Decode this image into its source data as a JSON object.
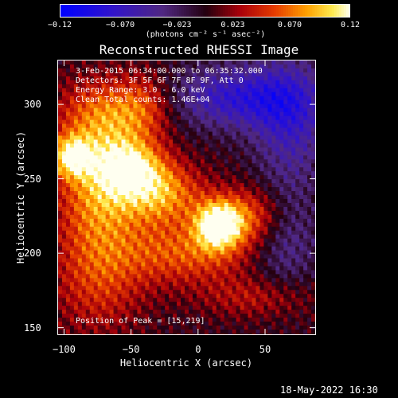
{
  "chart_data": {
    "type": "heatmap",
    "title": "Reconstructed RHESSI Image",
    "xlabel": "Heliocentric X (arcsec)",
    "ylabel": "Heliocentric Y (arcsec)",
    "xlim": [
      -105,
      88
    ],
    "ylim": [
      145,
      330
    ],
    "x_ticks": [
      -100,
      -50,
      0,
      50
    ],
    "x_tick_labels": [
      "−100",
      "−50",
      "0",
      "50"
    ],
    "y_ticks": [
      150,
      200,
      250,
      300
    ],
    "y_tick_labels": [
      "150",
      "200",
      "250",
      "300"
    ],
    "colorbar": {
      "range": [
        -0.12,
        0.12
      ],
      "tick_labels": [
        "−0.12",
        "−0.070",
        "−0.023",
        "0.023",
        "0.070",
        "0.12"
      ],
      "tick_values": [
        -0.12,
        -0.07,
        -0.023,
        0.023,
        0.07,
        0.12
      ],
      "unit": "(photons cm⁻² s⁻¹ asec⁻²)"
    },
    "annotations": [
      "3-Feb-2015 06:34:00.000 to 06:35:32.000",
      "Detectors: 3F 5F 6F 7F 8F 9F, Att 0",
      "Energy Range: 3.0 - 6.0 keV",
      "Clean    Total counts: 1.46E+04"
    ],
    "peak_label": "Position of Peak = [15,219]",
    "sources": [
      {
        "x": 15,
        "y": 219,
        "peak": 0.12,
        "sx": 12,
        "sy": 11
      },
      {
        "x": -95,
        "y": 265,
        "peak": 0.095,
        "sx": 11,
        "sy": 10
      },
      {
        "x": -52,
        "y": 258,
        "peak": 0.09,
        "sx": 18,
        "sy": 13
      },
      {
        "x": -75,
        "y": 238,
        "peak": 0.075,
        "sx": 22,
        "sy": 28
      },
      {
        "x": -28,
        "y": 240,
        "peak": 0.08,
        "sx": 22,
        "sy": 15
      },
      {
        "x": -70,
        "y": 292,
        "peak": 0.07,
        "sx": 25,
        "sy": 18
      },
      {
        "x": 40,
        "y": 225,
        "peak": 0.065,
        "sx": 20,
        "sy": 14
      },
      {
        "x": -10,
        "y": 200,
        "peak": 0.06,
        "sx": 35,
        "sy": 15
      },
      {
        "x": -75,
        "y": 180,
        "peak": 0.045,
        "sx": 25,
        "sy": 25
      },
      {
        "x": 45,
        "y": 170,
        "peak": 0.035,
        "sx": 30,
        "sy": 10
      },
      {
        "x": -40,
        "y": 300,
        "peak": 0.04,
        "sx": 15,
        "sy": 15
      },
      {
        "x": 30,
        "y": 305,
        "peak": -0.075,
        "sx": 35,
        "sy": 15
      },
      {
        "x": 70,
        "y": 290,
        "peak": -0.06,
        "sx": 20,
        "sy": 30
      },
      {
        "x": 65,
        "y": 210,
        "peak": -0.045,
        "sx": 18,
        "sy": 25
      }
    ]
  },
  "footer": {
    "timestamp": "18-May-2022 16:30"
  }
}
